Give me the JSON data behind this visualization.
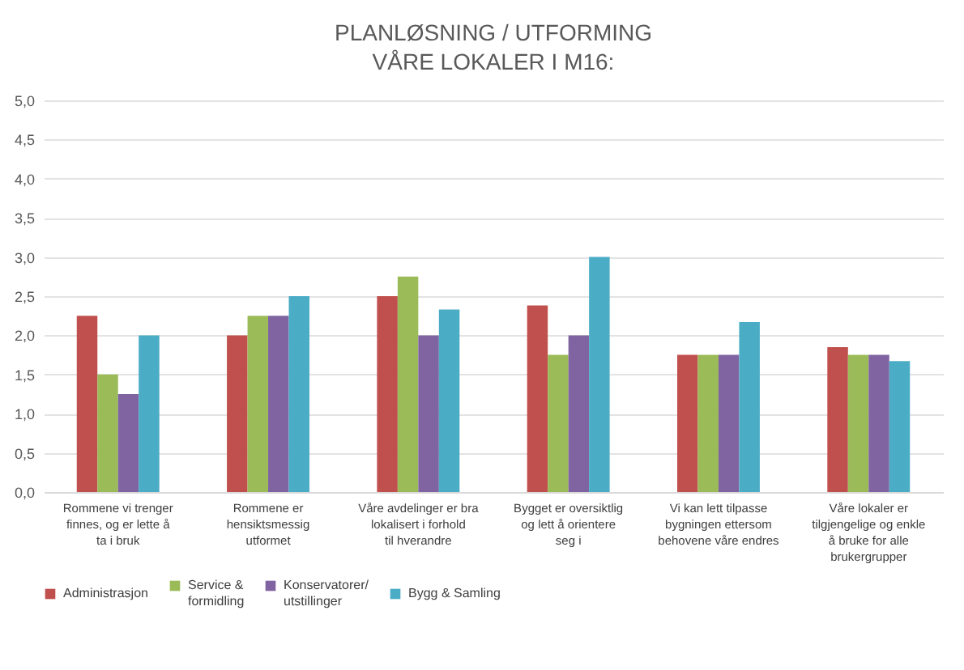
{
  "chart_data": {
    "type": "bar",
    "title": "PLANLØSNING / UTFORMING",
    "subtitle": "VÅRE LOKALER I M16:",
    "categories": [
      "Rommene vi trenger finnes, og er lette å ta i bruk",
      "Rommene er hensiktsmessig utformet",
      "Våre avdelinger er bra lokalisert i forhold til hverandre",
      "Bygget er oversiktlig og lett å orientere seg i",
      "Vi kan lett tilpasse bygningen ettersom behovene våre endres",
      "Våre lokaler er tilgjengelige og enkle å bruke for alle brukergrupper"
    ],
    "series": [
      {
        "name": "Administrasjon",
        "color": "#c0504d",
        "values": [
          2.25,
          2.0,
          2.5,
          2.38,
          1.75,
          1.85
        ]
      },
      {
        "name": "Service & formidling",
        "color": "#9bbb59",
        "values": [
          1.5,
          2.25,
          2.75,
          1.75,
          1.75,
          1.75
        ]
      },
      {
        "name": "Konservatorer/utstillinger",
        "color": "#8064a2",
        "values": [
          1.25,
          2.25,
          2.0,
          2.0,
          1.75,
          1.75
        ]
      },
      {
        "name": "Bygg & Samling",
        "color": "#4bacc6",
        "values": [
          2.0,
          2.5,
          2.33,
          3.0,
          2.17,
          1.67
        ]
      }
    ],
    "ylim": [
      0,
      5
    ],
    "yticks": [
      {
        "value": 0,
        "label": "0,0"
      },
      {
        "value": 0.5,
        "label": "0,5"
      },
      {
        "value": 1,
        "label": "1,0"
      },
      {
        "value": 1.5,
        "label": "1,5"
      },
      {
        "value": 2,
        "label": "2,0"
      },
      {
        "value": 2.5,
        "label": "2,5"
      },
      {
        "value": 3,
        "label": "3,0"
      },
      {
        "value": 3.5,
        "label": "3,5"
      },
      {
        "value": 4,
        "label": "4,0"
      },
      {
        "value": 4.5,
        "label": "4,5"
      },
      {
        "value": 5,
        "label": "5,0"
      }
    ],
    "grid": "y",
    "legend": "bottom"
  }
}
